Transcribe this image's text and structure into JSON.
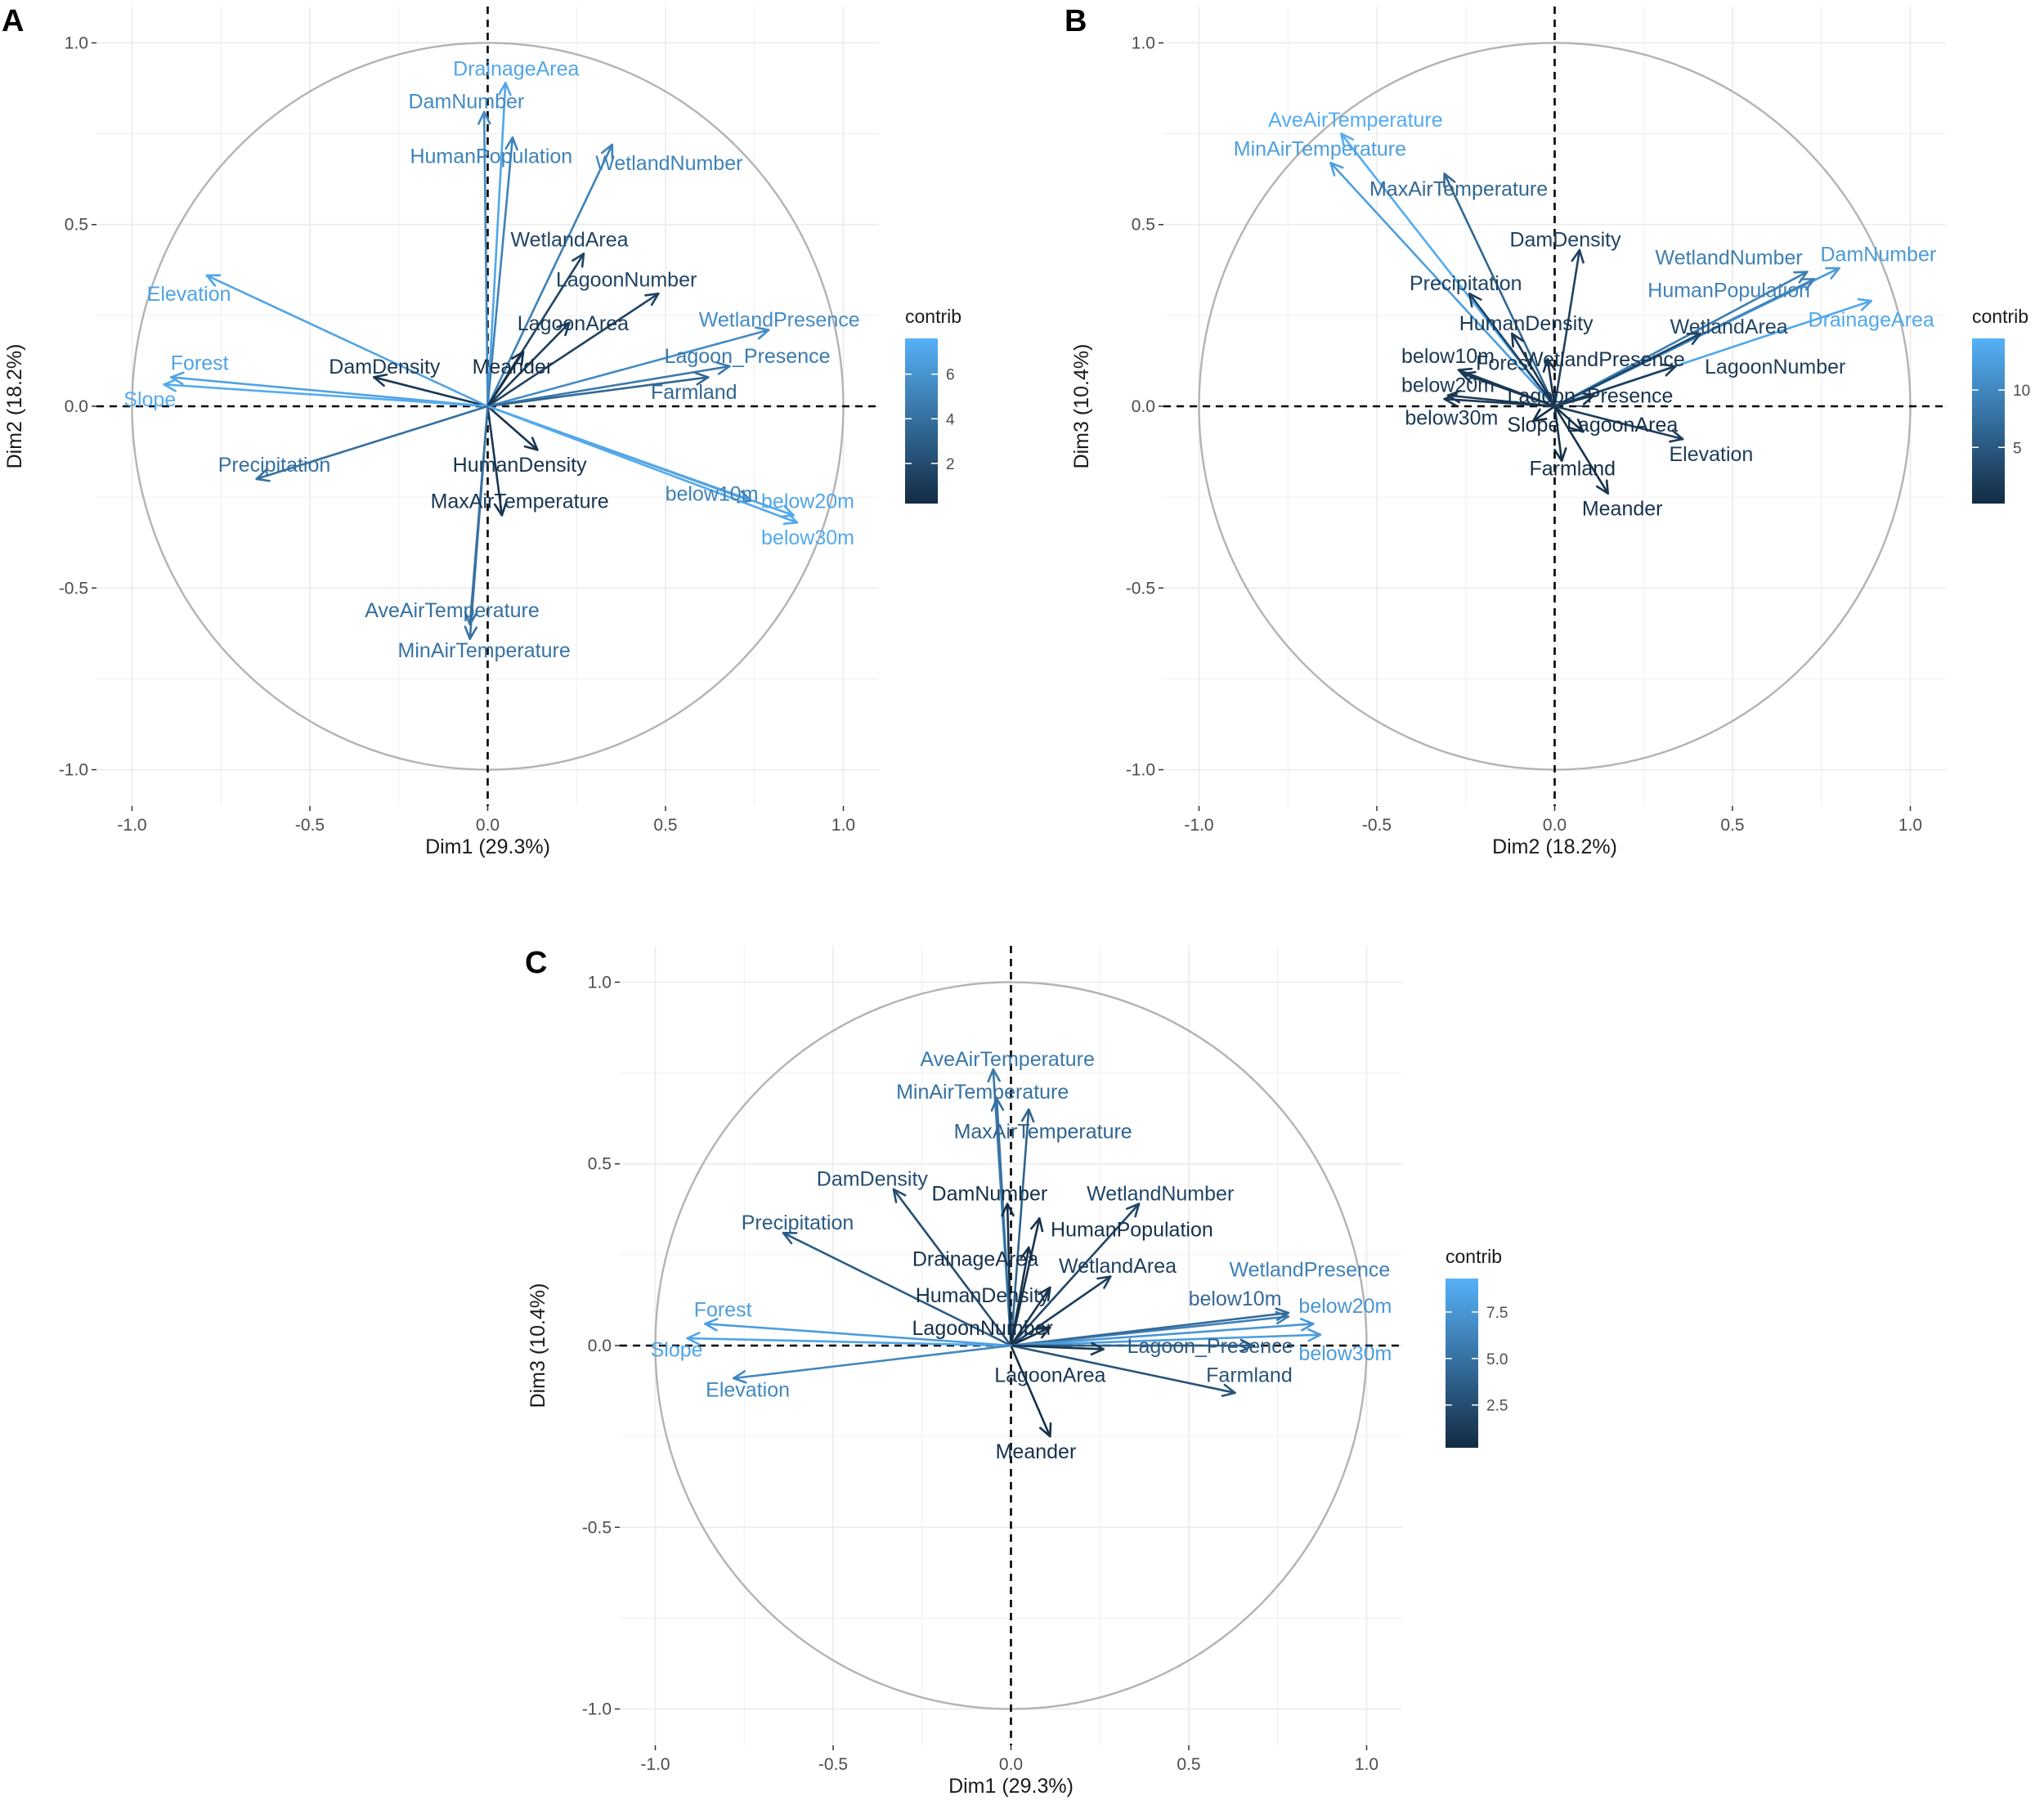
{
  "figure": {
    "arrow_colors": {
      "low": "#132b43",
      "high": "#56b1f7"
    },
    "grid_color": "#ebebeb",
    "circle_color": "#b3b3b3"
  },
  "chart_data": [
    {
      "type": "scatter",
      "subtype": "pca-variable-correlation-circle",
      "panel": "A",
      "xlabel": "Dim1 (29.3%)",
      "ylabel": "Dim2 (18.2%)",
      "xlim": [
        -1.0,
        1.0
      ],
      "ylim": [
        -1.0,
        1.0
      ],
      "xticks": [
        "-1.0",
        "-0.5",
        "0.0",
        "0.5",
        "1.0"
      ],
      "yticks": [
        "-1.0",
        "-0.5",
        "0.0",
        "0.5",
        "1.0"
      ],
      "legend": {
        "title": "contrib",
        "ticks": [
          "2",
          "4",
          "6"
        ],
        "tick_values": [
          2,
          4,
          6
        ],
        "range": [
          0.2,
          7.6
        ]
      },
      "variables": [
        {
          "name": "DrainageArea",
          "x": 0.05,
          "y": 0.89,
          "contrib": 7.0,
          "lx": 0.08,
          "ly": 0.93
        },
        {
          "name": "DamNumber",
          "x": -0.01,
          "y": 0.81,
          "contrib": 5.5,
          "lx": -0.06,
          "ly": 0.84
        },
        {
          "name": "HumanPopulation",
          "x": 0.07,
          "y": 0.74,
          "contrib": 5.0,
          "lx": 0.01,
          "ly": 0.69
        },
        {
          "name": "WetlandNumber",
          "x": 0.35,
          "y": 0.72,
          "contrib": 5.0,
          "lx": 0.51,
          "ly": 0.67
        },
        {
          "name": "WetlandArea",
          "x": 0.27,
          "y": 0.42,
          "contrib": 1.6,
          "lx": 0.23,
          "ly": 0.46
        },
        {
          "name": "LagoonNumber",
          "x": 0.48,
          "y": 0.31,
          "contrib": 1.5,
          "lx": 0.39,
          "ly": 0.35
        },
        {
          "name": "LagoonArea",
          "x": 0.23,
          "y": 0.23,
          "contrib": 1.2,
          "lx": 0.24,
          "ly": 0.23
        },
        {
          "name": "WetlandPresence",
          "x": 0.79,
          "y": 0.21,
          "contrib": 5.5,
          "lx": 0.82,
          "ly": 0.24
        },
        {
          "name": "Lagoon_Presence",
          "x": 0.68,
          "y": 0.11,
          "contrib": 4.5,
          "lx": 0.73,
          "ly": 0.14
        },
        {
          "name": "Farmland",
          "x": 0.62,
          "y": 0.08,
          "contrib": 3.5,
          "lx": 0.58,
          "ly": 0.04
        },
        {
          "name": "Meander",
          "x": 0.1,
          "y": 0.15,
          "contrib": 0.4,
          "lx": 0.07,
          "ly": 0.11
        },
        {
          "name": "DamDensity",
          "x": -0.32,
          "y": 0.08,
          "contrib": 1.0,
          "lx": -0.29,
          "ly": 0.11
        },
        {
          "name": "Elevation",
          "x": -0.79,
          "y": 0.36,
          "contrib": 6.8,
          "lx": -0.84,
          "ly": 0.31
        },
        {
          "name": "Forest",
          "x": -0.89,
          "y": 0.08,
          "contrib": 6.8,
          "lx": -0.81,
          "ly": 0.12
        },
        {
          "name": "Slope",
          "x": -0.91,
          "y": 0.06,
          "contrib": 7.3,
          "lx": -0.95,
          "ly": 0.02
        },
        {
          "name": "Precipitation",
          "x": -0.65,
          "y": -0.2,
          "contrib": 4.0,
          "lx": -0.6,
          "ly": -0.16
        },
        {
          "name": "HumanDensity",
          "x": 0.14,
          "y": -0.12,
          "contrib": 0.7,
          "lx": 0.09,
          "ly": -0.16
        },
        {
          "name": "MaxAirTemperature",
          "x": 0.04,
          "y": -0.3,
          "contrib": 0.8,
          "lx": 0.09,
          "ly": -0.26
        },
        {
          "name": "below10m",
          "x": 0.74,
          "y": -0.26,
          "contrib": 5.0,
          "lx": 0.63,
          "ly": -0.24
        },
        {
          "name": "below20m",
          "x": 0.86,
          "y": -0.3,
          "contrib": 7.0,
          "lx": 0.9,
          "ly": -0.26
        },
        {
          "name": "below30m",
          "x": 0.87,
          "y": -0.32,
          "contrib": 7.2,
          "lx": 0.9,
          "ly": -0.36
        },
        {
          "name": "AveAirTemperature",
          "x": -0.05,
          "y": -0.6,
          "contrib": 4.0,
          "lx": -0.1,
          "ly": -0.56
        },
        {
          "name": "MinAirTemperature",
          "x": -0.05,
          "y": -0.64,
          "contrib": 4.2,
          "lx": -0.01,
          "ly": -0.67
        }
      ]
    },
    {
      "type": "scatter",
      "subtype": "pca-variable-correlation-circle",
      "panel": "B",
      "xlabel": "Dim2 (18.2%)",
      "ylabel": "Dim3 (10.4%)",
      "xlim": [
        -1.0,
        1.0
      ],
      "ylim": [
        -1.0,
        1.0
      ],
      "xticks": [
        "-1.0",
        "-0.5",
        "0.0",
        "0.5",
        "1.0"
      ],
      "yticks": [
        "-1.0",
        "-0.5",
        "0.0",
        "0.5",
        "1.0"
      ],
      "legend": {
        "title": "contrib",
        "ticks": [
          "5",
          "10"
        ],
        "tick_values": [
          5,
          10
        ],
        "range": [
          0.1,
          14.5
        ]
      },
      "variables": [
        {
          "name": "AveAirTemperature",
          "x": -0.6,
          "y": 0.75,
          "contrib": 14.0,
          "lx": -0.56,
          "ly": 0.79
        },
        {
          "name": "MinAirTemperature",
          "x": -0.63,
          "y": 0.67,
          "contrib": 12.5,
          "lx": -0.66,
          "ly": 0.71
        },
        {
          "name": "MaxAirTemperature",
          "x": -0.31,
          "y": 0.64,
          "contrib": 6.5,
          "lx": -0.27,
          "ly": 0.6
        },
        {
          "name": "DamDensity",
          "x": 0.07,
          "y": 0.43,
          "contrib": 2.5,
          "lx": 0.03,
          "ly": 0.46
        },
        {
          "name": "Precipitation",
          "x": -0.24,
          "y": 0.31,
          "contrib": 2.5,
          "lx": -0.25,
          "ly": 0.34
        },
        {
          "name": "HumanDensity",
          "x": -0.12,
          "y": 0.2,
          "contrib": 1.5,
          "lx": -0.08,
          "ly": 0.23
        },
        {
          "name": "WetlandPresence",
          "x": -0.02,
          "y": 0.13,
          "contrib": 1.0,
          "lx": 0.14,
          "ly": 0.13
        },
        {
          "name": "below10m",
          "x": -0.27,
          "y": 0.1,
          "contrib": 1.5,
          "lx": -0.3,
          "ly": 0.14
        },
        {
          "name": "Forest",
          "x": -0.26,
          "y": 0.09,
          "contrib": 1.5,
          "lx": -0.14,
          "ly": 0.12
        },
        {
          "name": "below20m",
          "x": -0.3,
          "y": 0.03,
          "contrib": 1.5,
          "lx": -0.3,
          "ly": 0.06
        },
        {
          "name": "below30m",
          "x": -0.31,
          "y": 0.02,
          "contrib": 1.5,
          "lx": -0.29,
          "ly": -0.03
        },
        {
          "name": "Lagoon_Presence",
          "x": 0.11,
          "y": 0.03,
          "contrib": 0.8,
          "lx": 0.1,
          "ly": 0.03
        },
        {
          "name": "Slope",
          "x": -0.06,
          "y": -0.04,
          "contrib": 0.3,
          "lx": -0.06,
          "ly": -0.05
        },
        {
          "name": "LagoonArea",
          "x": 0.08,
          "y": -0.07,
          "contrib": 0.6,
          "lx": 0.19,
          "ly": -0.05
        },
        {
          "name": "Elevation",
          "x": 0.36,
          "y": -0.09,
          "contrib": 2.0,
          "lx": 0.44,
          "ly": -0.13
        },
        {
          "name": "Farmland",
          "x": 0.02,
          "y": -0.15,
          "contrib": 0.5,
          "lx": 0.05,
          "ly": -0.17
        },
        {
          "name": "Meander",
          "x": 0.15,
          "y": -0.24,
          "contrib": 1.0,
          "lx": 0.19,
          "ly": -0.28
        },
        {
          "name": "WetlandNumber",
          "x": 0.71,
          "y": 0.37,
          "contrib": 9.0,
          "lx": 0.49,
          "ly": 0.41
        },
        {
          "name": "DamNumber",
          "x": 0.8,
          "y": 0.38,
          "contrib": 12.0,
          "lx": 0.91,
          "ly": 0.42
        },
        {
          "name": "HumanPopulation",
          "x": 0.73,
          "y": 0.35,
          "contrib": 9.5,
          "lx": 0.49,
          "ly": 0.32
        },
        {
          "name": "WetlandArea",
          "x": 0.41,
          "y": 0.2,
          "contrib": 3.0,
          "lx": 0.49,
          "ly": 0.22
        },
        {
          "name": "DrainageArea",
          "x": 0.89,
          "y": 0.29,
          "contrib": 13.5,
          "lx": 0.89,
          "ly": 0.24
        },
        {
          "name": "LagoonNumber",
          "x": 0.34,
          "y": 0.11,
          "contrib": 2.0,
          "lx": 0.62,
          "ly": 0.11
        }
      ]
    },
    {
      "type": "scatter",
      "subtype": "pca-variable-correlation-circle",
      "panel": "C",
      "xlabel": "Dim1 (29.3%)",
      "ylabel": "Dim3 (10.4%)",
      "xlim": [
        -1.0,
        1.0
      ],
      "ylim": [
        -1.0,
        1.0
      ],
      "xticks": [
        "-1.0",
        "-0.5",
        "0.0",
        "0.5",
        "1.0"
      ],
      "yticks": [
        "-1.0",
        "-0.5",
        "0.0",
        "0.5",
        "1.0"
      ],
      "legend": {
        "title": "contrib",
        "ticks": [
          "2.5",
          "5.0",
          "7.5"
        ],
        "tick_values": [
          2.5,
          5.0,
          7.5
        ],
        "range": [
          0.2,
          9.3
        ]
      },
      "variables": [
        {
          "name": "AveAirTemperature",
          "x": -0.05,
          "y": 0.76,
          "contrib": 5.5,
          "lx": -0.01,
          "ly": 0.79
        },
        {
          "name": "MinAirTemperature",
          "x": -0.04,
          "y": 0.68,
          "contrib": 5.0,
          "lx": -0.08,
          "ly": 0.7
        },
        {
          "name": "MaxAirTemperature",
          "x": 0.05,
          "y": 0.65,
          "contrib": 4.0,
          "lx": 0.09,
          "ly": 0.59
        },
        {
          "name": "DamDensity",
          "x": -0.33,
          "y": 0.43,
          "contrib": 2.5,
          "lx": -0.39,
          "ly": 0.46
        },
        {
          "name": "Precipitation",
          "x": -0.64,
          "y": 0.31,
          "contrib": 3.5,
          "lx": -0.6,
          "ly": 0.34
        },
        {
          "name": "DamNumber",
          "x": -0.01,
          "y": 0.39,
          "contrib": 0.5,
          "lx": -0.06,
          "ly": 0.42
        },
        {
          "name": "HumanPopulation",
          "x": 0.08,
          "y": 0.35,
          "contrib": 0.7,
          "lx": 0.34,
          "ly": 0.32
        },
        {
          "name": "WetlandNumber",
          "x": 0.36,
          "y": 0.39,
          "contrib": 2.0,
          "lx": 0.42,
          "ly": 0.42
        },
        {
          "name": "DrainageArea",
          "x": 0.05,
          "y": 0.27,
          "contrib": 0.6,
          "lx": -0.1,
          "ly": 0.24
        },
        {
          "name": "WetlandArea",
          "x": 0.28,
          "y": 0.19,
          "contrib": 1.5,
          "lx": 0.3,
          "ly": 0.22
        },
        {
          "name": "HumanDensity",
          "x": 0.11,
          "y": 0.16,
          "contrib": 0.8,
          "lx": -0.08,
          "ly": 0.14
        },
        {
          "name": "LagoonNumber",
          "x": 0.11,
          "y": 0.05,
          "contrib": 0.5,
          "lx": -0.08,
          "ly": 0.05
        },
        {
          "name": "WetlandPresence",
          "x": 0.78,
          "y": 0.08,
          "contrib": 6.0,
          "lx": 0.84,
          "ly": 0.21
        },
        {
          "name": "below10m",
          "x": 0.78,
          "y": 0.09,
          "contrib": 4.5,
          "lx": 0.63,
          "ly": 0.13
        },
        {
          "name": "below20m",
          "x": 0.85,
          "y": 0.06,
          "contrib": 7.5,
          "lx": 0.94,
          "ly": 0.11
        },
        {
          "name": "below30m",
          "x": 0.87,
          "y": 0.03,
          "contrib": 8.0,
          "lx": 0.94,
          "ly": -0.02
        },
        {
          "name": "Lagoon_Presence",
          "x": 0.68,
          "y": 0.0,
          "contrib": 3.5,
          "lx": 0.56,
          "ly": 0.0
        },
        {
          "name": "Farmland",
          "x": 0.63,
          "y": -0.13,
          "contrib": 3.0,
          "lx": 0.67,
          "ly": -0.08
        },
        {
          "name": "LagoonArea",
          "x": 0.26,
          "y": -0.01,
          "contrib": 1.0,
          "lx": 0.11,
          "ly": -0.08
        },
        {
          "name": "Meander",
          "x": 0.11,
          "y": -0.25,
          "contrib": 0.6,
          "lx": 0.07,
          "ly": -0.29
        },
        {
          "name": "Forest",
          "x": -0.86,
          "y": 0.06,
          "contrib": 8.0,
          "lx": -0.81,
          "ly": 0.1
        },
        {
          "name": "Slope",
          "x": -0.91,
          "y": 0.02,
          "contrib": 8.5,
          "lx": -0.94,
          "ly": -0.01
        },
        {
          "name": "Elevation",
          "x": -0.78,
          "y": -0.09,
          "contrib": 6.5,
          "lx": -0.74,
          "ly": -0.12
        }
      ]
    }
  ]
}
